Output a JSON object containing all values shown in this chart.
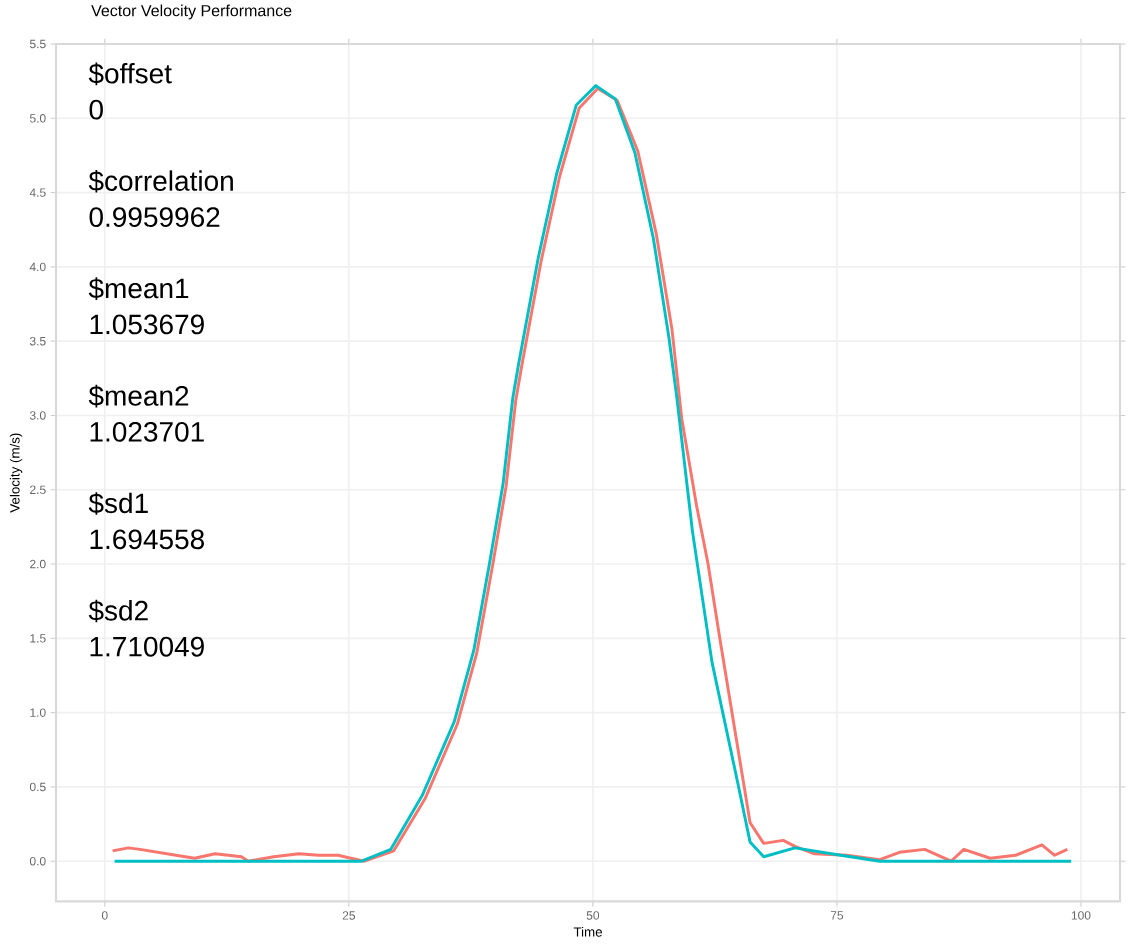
{
  "chart_data": {
    "type": "line",
    "title": "Vector Velocity Performance",
    "xlabel": "Time",
    "ylabel": "Velocity (m/s)",
    "annotations": [
      "$offset",
      "0",
      "$correlation",
      "0.9959962",
      "$mean1",
      "1.053679",
      "$mean2",
      "1.023701",
      "$sd1",
      "1.694558",
      "$sd2",
      "1.710049"
    ],
    "xlim": [
      -5,
      104
    ],
    "ylim": [
      -0.27,
      5.5
    ],
    "xticks": [
      0,
      25,
      50,
      75,
      100
    ],
    "yticks": [
      {
        "value": 0,
        "label": "0.0"
      },
      {
        "value": 0.5,
        "label": "0.5"
      },
      {
        "value": 1,
        "label": "1.0"
      },
      {
        "value": 1.5,
        "label": "1.5"
      },
      {
        "value": 2,
        "label": "2.0"
      },
      {
        "value": 2.5,
        "label": "2.5"
      },
      {
        "value": 3,
        "label": "3.0"
      },
      {
        "value": 3.5,
        "label": "3.5"
      },
      {
        "value": 4,
        "label": "4.0"
      },
      {
        "value": 4.5,
        "label": "4.5"
      },
      {
        "value": 5,
        "label": "5.0"
      },
      {
        "value": 5.5,
        "label": "5.5"
      }
    ],
    "grid": true,
    "marker": "none",
    "line_style": "solid",
    "series": [
      {
        "color": "#f8766d",
        "x": [
          0.8,
          2.4,
          3.6,
          7.3,
          9.2,
          11.3,
          14,
          14.7,
          17.3,
          19.9,
          21.9,
          23.9,
          25.2,
          26.6,
          29.6,
          32.8,
          36.1,
          38.1,
          39.7,
          41.1,
          42.1,
          42.7,
          44.7,
          46.6,
          48.6,
          50.5,
          52.5,
          54.6,
          56.5,
          58.1,
          59.1,
          60.6,
          61.8,
          63,
          65,
          66.1,
          67.5,
          69.5,
          70.7,
          72.7,
          76,
          79.4,
          81.4,
          84,
          86.7,
          88,
          90.7,
          93.3,
          96,
          97.3,
          98.6
        ],
        "values": [
          0.07,
          0.09,
          0.08,
          0.04,
          0.02,
          0.05,
          0.03,
          0,
          0.03,
          0.05,
          0.04,
          0.04,
          0.02,
          0,
          0.07,
          0.42,
          0.92,
          1.4,
          1.98,
          2.52,
          3.1,
          3.33,
          4.04,
          4.61,
          5.07,
          5.2,
          5.12,
          4.78,
          4.22,
          3.58,
          2.98,
          2.4,
          2.0,
          1.5,
          0.7,
          0.26,
          0.12,
          0.14,
          0.1,
          0.05,
          0.04,
          0.01,
          0.06,
          0.08,
          0,
          0.08,
          0.02,
          0.04,
          0.11,
          0.04,
          0.08
        ]
      },
      {
        "color": "#00bfc4",
        "x": [
          1,
          10,
          20,
          26.3,
          29.3,
          32.5,
          35.8,
          37.8,
          39.4,
          40.8,
          41.8,
          42.4,
          44.4,
          46.3,
          48.3,
          50.3,
          52.3,
          54.3,
          56.2,
          57.8,
          58.6,
          60.2,
          62.2,
          64.8,
          66.1,
          67.5,
          70.7,
          75.4,
          79.4,
          85,
          90,
          95,
          99
        ],
        "values": [
          0,
          0,
          0,
          0,
          0.08,
          0.44,
          0.94,
          1.42,
          2.0,
          2.54,
          3.12,
          3.35,
          4.06,
          4.63,
          5.09,
          5.22,
          5.13,
          4.77,
          4.19,
          3.52,
          3.12,
          2.22,
          1.34,
          0.54,
          0.13,
          0.03,
          0.09,
          0.04,
          0,
          0,
          0,
          0,
          0
        ]
      }
    ]
  }
}
